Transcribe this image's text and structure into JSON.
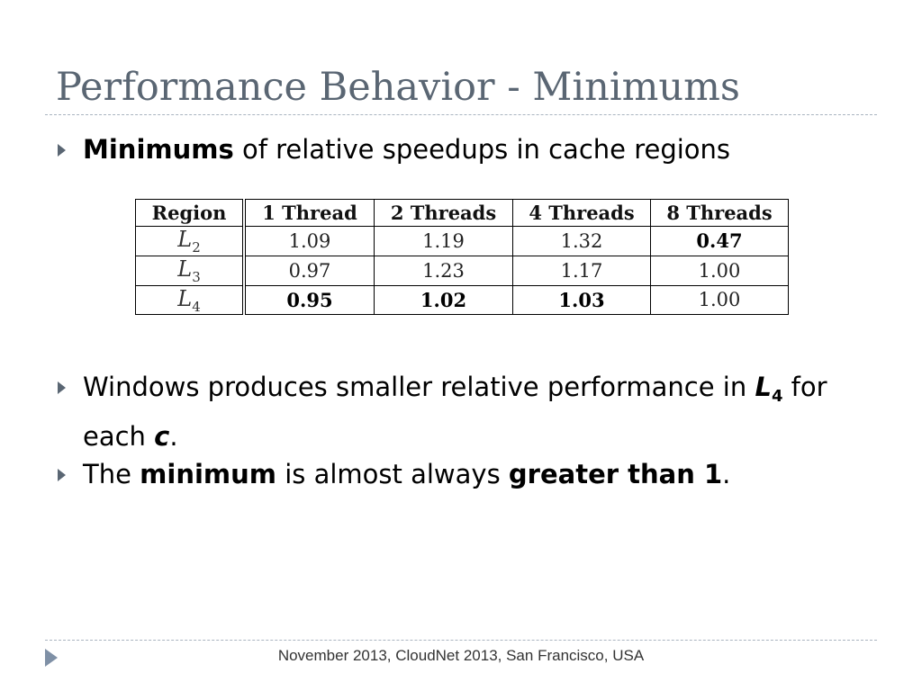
{
  "title": "Performance Behavior - Minimums",
  "bullets": [
    {
      "bold": "Minimums",
      "rest": " of relative speedups in cache regions"
    },
    {
      "text_a": "Windows produces smaller relative performance in ",
      "L": "L",
      "sub": "4",
      "text_b": " for",
      "text_c": "each ",
      "c": "c",
      "text_d": "."
    },
    {
      "text_a": "The ",
      "bold_a": "minimum",
      "text_b": " is almost always ",
      "bold_b": "greater than 1",
      "text_c": "."
    }
  ],
  "table": {
    "headers": [
      "Region",
      "1 Thread",
      "2 Threads",
      "4 Threads",
      "8 Threads"
    ],
    "rows": [
      {
        "region": "L",
        "region_sub": "2",
        "values": [
          "1.09",
          "1.19",
          "1.32",
          "0.47"
        ],
        "bold": [
          false,
          false,
          false,
          true
        ]
      },
      {
        "region": "L",
        "region_sub": "3",
        "values": [
          "0.97",
          "1.23",
          "1.17",
          "1.00"
        ],
        "bold": [
          false,
          false,
          false,
          false
        ]
      },
      {
        "region": "L",
        "region_sub": "4",
        "values": [
          "0.95",
          "1.02",
          "1.03",
          "1.00"
        ],
        "bold": [
          true,
          true,
          true,
          false
        ]
      }
    ]
  },
  "footer": "November 2013, CloudNet 2013, San Francisco, USA",
  "colors": {
    "title": "#5a6673",
    "rule": "#aab4c0",
    "marker": "#5a6673",
    "footer_arrow": "#7f90a6"
  }
}
